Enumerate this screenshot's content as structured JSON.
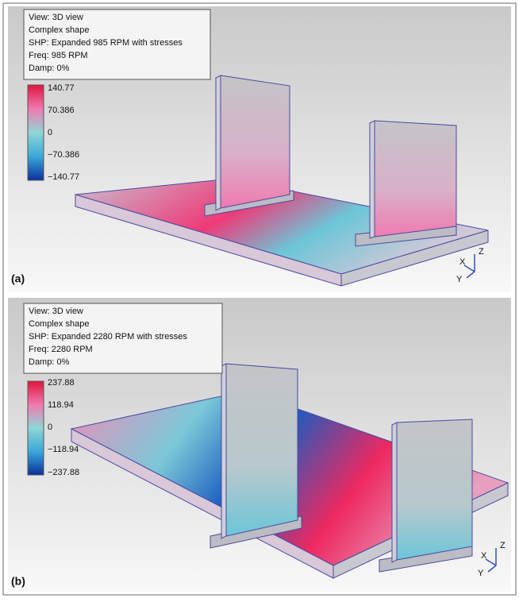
{
  "panels": [
    {
      "label": "(a)",
      "info": [
        "View: 3D view",
        "Complex shape",
        "SHP: Expanded 985 RPM with stresses",
        "Freq: 985 RPM",
        "Damp: 0%"
      ],
      "colorbar": [
        "140.77",
        "70.386",
        "0",
        "−70.386",
        "−140.77"
      ],
      "axes": [
        "Z",
        "X",
        "Y"
      ]
    },
    {
      "label": "(b)",
      "info": [
        "View: 3D view",
        "Complex shape",
        "SHP: Expanded 2280 RPM with stresses",
        "Freq: 2280 RPM",
        "Damp: 0%"
      ],
      "colorbar": [
        "237.88",
        "118.94",
        "0",
        "−118.94",
        "−237.88"
      ],
      "axes": [
        "Z",
        "X",
        "Y"
      ]
    }
  ]
}
